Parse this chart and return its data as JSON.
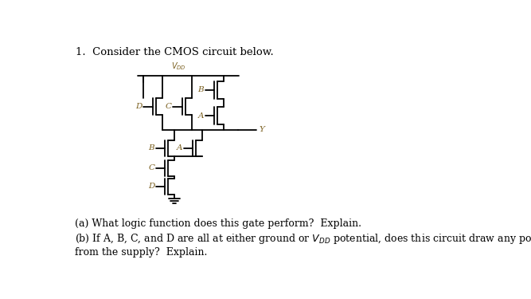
{
  "title": "1.  Consider the CMOS circuit below.",
  "vdd_label": "$V_{DD}$",
  "output_label": "Y",
  "label_color": "#7B6020",
  "line_color": "#000000",
  "bg_color": "#ffffff",
  "fig_width": 6.67,
  "fig_height": 3.75,
  "dpi": 100,
  "question_a": "(a) What logic function does this gate perform?  Explain.",
  "question_b_1": "(b) If A, B, C, and D are all at either ground or V",
  "question_b_2": " potential, does this circuit draw any power",
  "question_b_3": "from the supply?  Explain."
}
